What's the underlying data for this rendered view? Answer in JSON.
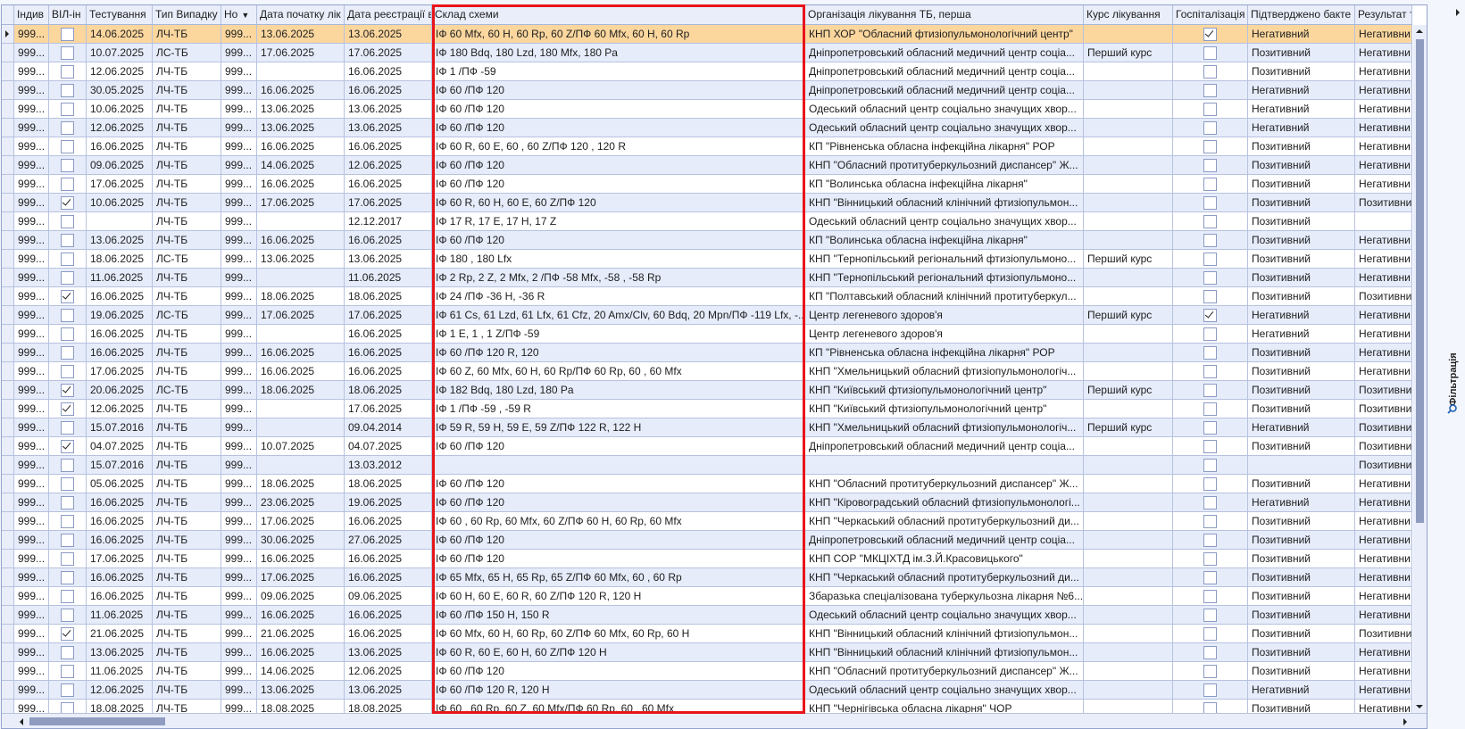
{
  "columns": [
    "",
    "Індив",
    "ВІЛ-ін",
    "Тестування",
    "Тип Випадку",
    "Но",
    "Дата початку лік",
    "Дата реєстрації в",
    "Склад схеми",
    "Організація лікування ТБ, перша",
    "Курс лікування",
    "Госпіталізація",
    "Підтверджено бакте",
    "Результат т"
  ],
  "sort_indicator": "▼",
  "selected_row": 0,
  "colors": {
    "selected_row": "#fbd79e",
    "alt_row": "#e6ecfa",
    "highlight_box": "#e8141a",
    "scrollbar_thumb": "#8f9cbf"
  },
  "side_panel": {
    "filter_label": "Фільтрація",
    "filter_icon": "search-icon"
  },
  "rows": [
    {
      "id": "999...",
      "hiv": false,
      "test": "14.06.2025",
      "type": "ЛЧ-ТБ",
      "no": "999...",
      "start": "13.06.2025",
      "reg": "13.06.2025",
      "scheme": "ІФ 60 Mfx, 60 H, 60 Rp, 60 Z/ПФ 60 Mfx, 60 H, 60 Rp",
      "org": "КНП ХОР \"Обласний фтизіопульмонологічний центр\"",
      "course": "",
      "hosp": true,
      "bact": "Негативний",
      "result": "Негативни"
    },
    {
      "id": "999...",
      "hiv": false,
      "test": "10.07.2025",
      "type": "ЛС-ТБ",
      "no": "999...",
      "start": "17.06.2025",
      "reg": "17.06.2025",
      "scheme": "ІФ 180 Bdq, 180 Lzd, 180 Mfx, 180 Pa",
      "org": "Дніпропетровський обласний медичний центр соціа...",
      "course": "Перший курс",
      "hosp": false,
      "bact": "Позитивний",
      "result": "Негативни"
    },
    {
      "id": "999...",
      "hiv": false,
      "test": "12.06.2025",
      "type": "ЛЧ-ТБ",
      "no": "999...",
      "start": "",
      "reg": "16.06.2025",
      "scheme": "ІФ 1 /ПФ -59",
      "org": "Дніпропетровський обласний медичний центр соціа...",
      "course": "",
      "hosp": false,
      "bact": "Позитивний",
      "result": "Негативни"
    },
    {
      "id": "999...",
      "hiv": false,
      "test": "30.05.2025",
      "type": "ЛЧ-ТБ",
      "no": "999...",
      "start": "16.06.2025",
      "reg": "16.06.2025",
      "scheme": "ІФ 60 /ПФ 120",
      "org": "Дніпропетровський обласний медичний центр соціа...",
      "course": "",
      "hosp": false,
      "bact": "Негативний",
      "result": "Негативни"
    },
    {
      "id": "999...",
      "hiv": false,
      "test": "10.06.2025",
      "type": "ЛЧ-ТБ",
      "no": "999...",
      "start": "13.06.2025",
      "reg": "13.06.2025",
      "scheme": "ІФ 60 /ПФ 120",
      "org": "Одеський обласний центр соціально значущих хвор...",
      "course": "",
      "hosp": false,
      "bact": "Негативний",
      "result": "Негативни"
    },
    {
      "id": "999...",
      "hiv": false,
      "test": "12.06.2025",
      "type": "ЛЧ-ТБ",
      "no": "999...",
      "start": "13.06.2025",
      "reg": "13.06.2025",
      "scheme": "ІФ 60 /ПФ 120",
      "org": "Одеський обласний центр соціально значущих хвор...",
      "course": "",
      "hosp": false,
      "bact": "Негативний",
      "result": "Негативни"
    },
    {
      "id": "999...",
      "hiv": false,
      "test": "16.06.2025",
      "type": "ЛЧ-ТБ",
      "no": "999...",
      "start": "16.06.2025",
      "reg": "16.06.2025",
      "scheme": "ІФ 60 R, 60 E, 60 , 60 Z/ПФ 120 , 120 R",
      "org": "КП \"Рівненська обласна інфекційна лікарня\" РОР",
      "course": "",
      "hosp": false,
      "bact": "Позитивний",
      "result": "Негативни"
    },
    {
      "id": "999...",
      "hiv": false,
      "test": "09.06.2025",
      "type": "ЛЧ-ТБ",
      "no": "999...",
      "start": "14.06.2025",
      "reg": "12.06.2025",
      "scheme": "ІФ 60 /ПФ 120",
      "org": "КНП \"Обласний протитуберкульозний диспансер\" Ж...",
      "course": "",
      "hosp": false,
      "bact": "Позитивний",
      "result": "Негативни"
    },
    {
      "id": "999...",
      "hiv": false,
      "test": "17.06.2025",
      "type": "ЛЧ-ТБ",
      "no": "999...",
      "start": "16.06.2025",
      "reg": "16.06.2025",
      "scheme": "ІФ 60 /ПФ 120",
      "org": "КП \"Волинська обласна інфекційна лікарня\"",
      "course": "",
      "hosp": false,
      "bact": "Позитивний",
      "result": "Негативни"
    },
    {
      "id": "999...",
      "hiv": true,
      "test": "10.06.2025",
      "type": "ЛЧ-ТБ",
      "no": "999...",
      "start": "17.06.2025",
      "reg": "17.06.2025",
      "scheme": "ІФ 60 R, 60 H, 60 E, 60 Z/ПФ 120",
      "org": "КНП \"Вінницький обласний клінічний фтизіопульмон...",
      "course": "",
      "hosp": false,
      "bact": "Позитивний",
      "result": "Позитивни"
    },
    {
      "id": "999...",
      "hiv": false,
      "test": "",
      "type": "ЛЧ-ТБ",
      "no": "999...",
      "start": "",
      "reg": "12.12.2017",
      "scheme": "ІФ 17 R, 17 E, 17 H, 17 Z",
      "org": "Одеський обласний центр соціально значущих хвор...",
      "course": "",
      "hosp": false,
      "bact": "Позитивний",
      "result": ""
    },
    {
      "id": "999...",
      "hiv": false,
      "test": "13.06.2025",
      "type": "ЛЧ-ТБ",
      "no": "999...",
      "start": "16.06.2025",
      "reg": "16.06.2025",
      "scheme": "ІФ 60 /ПФ 120",
      "org": "КП \"Волинська обласна інфекційна лікарня\"",
      "course": "",
      "hosp": false,
      "bact": "Позитивний",
      "result": "Негативни"
    },
    {
      "id": "999...",
      "hiv": false,
      "test": "18.06.2025",
      "type": "ЛС-ТБ",
      "no": "999...",
      "start": "13.06.2025",
      "reg": "13.06.2025",
      "scheme": "ІФ 180 , 180 Lfx",
      "org": "КНП \"Тернопільський регіональний фтизіопульмоно...",
      "course": "Перший курс",
      "hosp": false,
      "bact": "Позитивний",
      "result": "Негативни"
    },
    {
      "id": "999...",
      "hiv": false,
      "test": "11.06.2025",
      "type": "ЛЧ-ТБ",
      "no": "999...",
      "start": "",
      "reg": "11.06.2025",
      "scheme": "ІФ 2 Rp, 2 Z, 2 Mfx, 2 /ПФ -58 Mfx, -58 , -58 Rp",
      "org": "КНП \"Тернопільський регіональний фтизіопульмоно...",
      "course": "",
      "hosp": false,
      "bact": "Позитивний",
      "result": "Негативни"
    },
    {
      "id": "999...",
      "hiv": true,
      "test": "16.06.2025",
      "type": "ЛЧ-ТБ",
      "no": "999...",
      "start": "18.06.2025",
      "reg": "18.06.2025",
      "scheme": "ІФ 24 /ПФ -36 H, -36 R",
      "org": "КП \"Полтавський обласний клінічний протитуберкул...",
      "course": "",
      "hosp": false,
      "bact": "Позитивний",
      "result": "Позитивни"
    },
    {
      "id": "999...",
      "hiv": false,
      "test": "19.06.2025",
      "type": "ЛС-ТБ",
      "no": "999...",
      "start": "17.06.2025",
      "reg": "17.06.2025",
      "scheme": "ІФ 61 Cs, 61 Lzd, 61 Lfx, 61 Cfz, 20 Amx/Clv, 60 Bdq, 20 Mpn/ПФ -119 Lfx, -...",
      "org": "Центр легеневого здоров'я",
      "course": "Перший курс",
      "hosp": true,
      "bact": "Негативний",
      "result": "Негативни"
    },
    {
      "id": "999...",
      "hiv": false,
      "test": "16.06.2025",
      "type": "ЛЧ-ТБ",
      "no": "999...",
      "start": "",
      "reg": "16.06.2025",
      "scheme": "ІФ 1 E, 1 , 1 Z/ПФ -59",
      "org": "Центр легеневого здоров'я",
      "course": "",
      "hosp": false,
      "bact": "Негативний",
      "result": "Негативни"
    },
    {
      "id": "999...",
      "hiv": false,
      "test": "16.06.2025",
      "type": "ЛЧ-ТБ",
      "no": "999...",
      "start": "16.06.2025",
      "reg": "16.06.2025",
      "scheme": "ІФ 60 /ПФ 120 R, 120",
      "org": "КП \"Рівненська обласна інфекційна лікарня\" РОР",
      "course": "",
      "hosp": false,
      "bact": "Позитивний",
      "result": "Негативни"
    },
    {
      "id": "999...",
      "hiv": false,
      "test": "17.06.2025",
      "type": "ЛЧ-ТБ",
      "no": "999...",
      "start": "16.06.2025",
      "reg": "16.06.2025",
      "scheme": "ІФ 60 Z, 60 Mfx, 60 H, 60 Rp/ПФ 60 Rp, 60 , 60 Mfx",
      "org": "КНП \"Хмельницький обласний фтизіопульмонологіч...",
      "course": "",
      "hosp": false,
      "bact": "Позитивний",
      "result": "Негативни"
    },
    {
      "id": "999...",
      "hiv": true,
      "test": "20.06.2025",
      "type": "ЛС-ТБ",
      "no": "999...",
      "start": "18.06.2025",
      "reg": "18.06.2025",
      "scheme": "ІФ 182 Bdq, 180 Lzd, 180 Pa",
      "org": "КНП \"Київський фтизіопульмонологічний центр\"",
      "course": "Перший курс",
      "hosp": false,
      "bact": "Позитивний",
      "result": "Позитивни"
    },
    {
      "id": "999...",
      "hiv": true,
      "test": "12.06.2025",
      "type": "ЛЧ-ТБ",
      "no": "999...",
      "start": "",
      "reg": "17.06.2025",
      "scheme": "ІФ 1 /ПФ -59 , -59 R",
      "org": "КНП \"Київський фтизіопульмонологічний центр\"",
      "course": "",
      "hosp": false,
      "bact": "Позитивний",
      "result": "Позитивни"
    },
    {
      "id": "999...",
      "hiv": false,
      "test": "15.07.2016",
      "type": "ЛЧ-ТБ",
      "no": "999...",
      "start": "",
      "reg": "09.04.2014",
      "scheme": "ІФ 59 R, 59 H, 59 E, 59 Z/ПФ 122 R, 122 H",
      "org": "КНП \"Хмельницький обласний фтизіопульмонологіч...",
      "course": "Перший курс",
      "hosp": false,
      "bact": "Негативний",
      "result": "Позитивни"
    },
    {
      "id": "999...",
      "hiv": true,
      "test": "04.07.2025",
      "type": "ЛЧ-ТБ",
      "no": "999...",
      "start": "10.07.2025",
      "reg": "04.07.2025",
      "scheme": "ІФ 60 /ПФ 120",
      "org": "Дніпропетровський обласний медичний центр соціа...",
      "course": "",
      "hosp": false,
      "bact": "Позитивний",
      "result": "Позитивни"
    },
    {
      "id": "999...",
      "hiv": false,
      "test": "15.07.2016",
      "type": "ЛЧ-ТБ",
      "no": "999...",
      "start": "",
      "reg": "13.03.2012",
      "scheme": "",
      "org": "",
      "course": "",
      "hosp": false,
      "bact": "",
      "result": "Позитивни"
    },
    {
      "id": "999...",
      "hiv": false,
      "test": "05.06.2025",
      "type": "ЛЧ-ТБ",
      "no": "999...",
      "start": "18.06.2025",
      "reg": "18.06.2025",
      "scheme": "ІФ 60 /ПФ 120",
      "org": "КНП \"Обласний протитуберкульозний диспансер\" Ж...",
      "course": "",
      "hosp": false,
      "bact": "Позитивний",
      "result": "Негативни"
    },
    {
      "id": "999...",
      "hiv": false,
      "test": "16.06.2025",
      "type": "ЛЧ-ТБ",
      "no": "999...",
      "start": "23.06.2025",
      "reg": "19.06.2025",
      "scheme": "ІФ 60 /ПФ 120",
      "org": "КНП \"Кіровоградський обласний фтизіопульмонологі...",
      "course": "",
      "hosp": false,
      "bact": "Негативний",
      "result": "Негативни"
    },
    {
      "id": "999...",
      "hiv": false,
      "test": "16.06.2025",
      "type": "ЛЧ-ТБ",
      "no": "999...",
      "start": "17.06.2025",
      "reg": "16.06.2025",
      "scheme": "ІФ 60 , 60 Rp, 60 Mfx, 60 Z/ПФ 60 H, 60 Rp, 60 Mfx",
      "org": "КНП \"Черкаський обласний протитуберкульозний ди...",
      "course": "",
      "hosp": false,
      "bact": "Позитивний",
      "result": "Негативни"
    },
    {
      "id": "999...",
      "hiv": false,
      "test": "16.06.2025",
      "type": "ЛЧ-ТБ",
      "no": "999...",
      "start": "30.06.2025",
      "reg": "27.06.2025",
      "scheme": "ІФ 60 /ПФ 120",
      "org": "Дніпропетровський обласний медичний центр соціа...",
      "course": "",
      "hosp": false,
      "bact": "Позитивний",
      "result": "Негативни"
    },
    {
      "id": "999...",
      "hiv": false,
      "test": "17.06.2025",
      "type": "ЛЧ-ТБ",
      "no": "999...",
      "start": "16.06.2025",
      "reg": "16.06.2025",
      "scheme": "ІФ 60 /ПФ 120",
      "org": "КНП СОР \"МКЦІХТД ім.З.Й.Красовицького\"",
      "course": "",
      "hosp": false,
      "bact": "Позитивний",
      "result": "Негативни"
    },
    {
      "id": "999...",
      "hiv": false,
      "test": "16.06.2025",
      "type": "ЛЧ-ТБ",
      "no": "999...",
      "start": "17.06.2025",
      "reg": "16.06.2025",
      "scheme": "ІФ 65 Mfx, 65 H, 65 Rp, 65 Z/ПФ 60 Mfx, 60 , 60 Rp",
      "org": "КНП \"Черкаський обласний протитуберкульозний ди...",
      "course": "",
      "hosp": false,
      "bact": "Позитивний",
      "result": "Негативни"
    },
    {
      "id": "999...",
      "hiv": false,
      "test": "16.06.2025",
      "type": "ЛЧ-ТБ",
      "no": "999...",
      "start": "09.06.2025",
      "reg": "09.06.2025",
      "scheme": "ІФ 60 H, 60 E, 60 R, 60 Z/ПФ 120 R, 120 H",
      "org": "Збаразька спеціалізована туберкульозна лікарня №6...",
      "course": "",
      "hosp": false,
      "bact": "Позитивний",
      "result": "Негативни"
    },
    {
      "id": "999...",
      "hiv": false,
      "test": "11.06.2025",
      "type": "ЛЧ-ТБ",
      "no": "999...",
      "start": "16.06.2025",
      "reg": "16.06.2025",
      "scheme": "ІФ 60 /ПФ 150 H, 150 R",
      "org": "Одеський обласний центр соціально значущих хвор...",
      "course": "",
      "hosp": false,
      "bact": "Позитивний",
      "result": "Негативни"
    },
    {
      "id": "999...",
      "hiv": true,
      "test": "21.06.2025",
      "type": "ЛЧ-ТБ",
      "no": "999...",
      "start": "21.06.2025",
      "reg": "16.06.2025",
      "scheme": "ІФ 60 Mfx, 60 H, 60 Rp, 60 Z/ПФ 60 Mfx, 60 Rp, 60 H",
      "org": "КНП \"Вінницький обласний клінічний фтизіопульмон...",
      "course": "",
      "hosp": false,
      "bact": "Позитивний",
      "result": "Позитивни"
    },
    {
      "id": "999...",
      "hiv": false,
      "test": "13.06.2025",
      "type": "ЛЧ-ТБ",
      "no": "999...",
      "start": "16.06.2025",
      "reg": "13.06.2025",
      "scheme": "ІФ 60 R, 60 E, 60 H, 60 Z/ПФ 120 H",
      "org": "КНП \"Вінницький обласний клінічний фтизіопульмон...",
      "course": "",
      "hosp": false,
      "bact": "Позитивний",
      "result": "Негативни"
    },
    {
      "id": "999...",
      "hiv": false,
      "test": "11.06.2025",
      "type": "ЛЧ-ТБ",
      "no": "999...",
      "start": "14.06.2025",
      "reg": "12.06.2025",
      "scheme": "ІФ 60 /ПФ 120",
      "org": "КНП \"Обласний протитуберкульозний диспансер\" Ж...",
      "course": "",
      "hosp": false,
      "bact": "Позитивний",
      "result": "Негативни"
    },
    {
      "id": "999...",
      "hiv": false,
      "test": "12.06.2025",
      "type": "ЛЧ-ТБ",
      "no": "999...",
      "start": "13.06.2025",
      "reg": "13.06.2025",
      "scheme": "ІФ 60 /ПФ 120 R, 120 H",
      "org": "Одеський обласний центр соціально значущих хвор...",
      "course": "",
      "hosp": false,
      "bact": "Негативний",
      "result": "Негативни"
    },
    {
      "id": "999...",
      "hiv": false,
      "test": "18.08.2025",
      "type": "ЛЧ-ТБ",
      "no": "999...",
      "start": "18.08.2025",
      "reg": "18.08.2025",
      "scheme": "ІФ 60 , 60 Rp, 60 Z, 60 Mfx/ПФ 60 Rp, 60 , 60 Mfx",
      "org": "КНП \"Чернігівська обласна лікарня\" ЧОР",
      "course": "",
      "hosp": false,
      "bact": "Позитивний",
      "result": "Негативни"
    }
  ]
}
